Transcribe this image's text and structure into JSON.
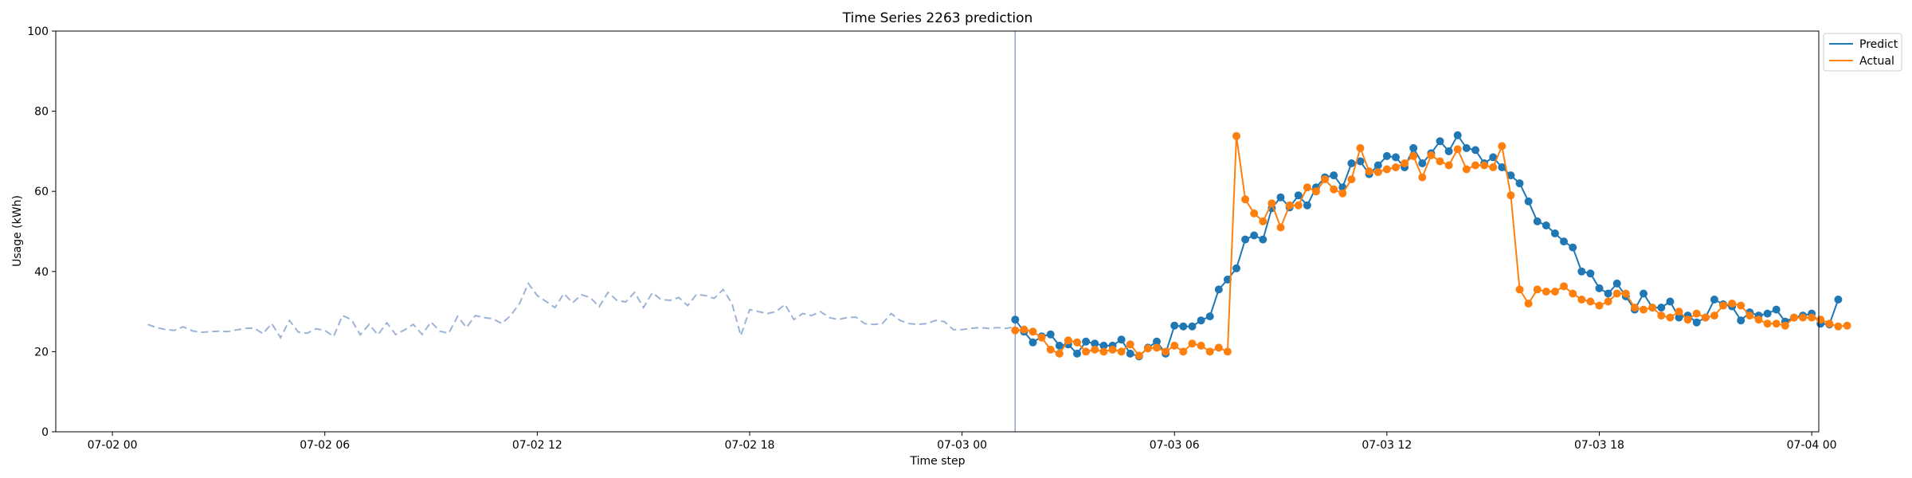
{
  "chart_data": {
    "type": "line",
    "title": "Time Series 2263 prediction",
    "xlabel": "Time step",
    "ylabel": "Usage (kWh)",
    "ylim": [
      0,
      100
    ],
    "xlim_hours": [
      -1.6,
      48.2
    ],
    "yticks": [
      0,
      20,
      40,
      60,
      80,
      100
    ],
    "xticks": [
      {
        "h": 0,
        "label": "07-02 00"
      },
      {
        "h": 6,
        "label": "07-02 06"
      },
      {
        "h": 12,
        "label": "07-02 12"
      },
      {
        "h": 18,
        "label": "07-02 18"
      },
      {
        "h": 24,
        "label": "07-03 00"
      },
      {
        "h": 30,
        "label": "07-03 06"
      },
      {
        "h": 36,
        "label": "07-03 12"
      },
      {
        "h": 42,
        "label": "07-03 18"
      },
      {
        "h": 48,
        "label": "07-04 00"
      }
    ],
    "legend": {
      "position": "top-right outside",
      "entries": [
        "Predict",
        "Actual"
      ]
    },
    "colors": {
      "predict": "#1f77b4",
      "actual": "#ff7f0e",
      "history": "#9db3d6",
      "divider": "#8fa8cf"
    },
    "divider_h": 25.5,
    "history": {
      "start_h": 1.0,
      "step_h": 0.25,
      "values": [
        26.8,
        26.0,
        25.5,
        25.3,
        26.2,
        25.2,
        24.8,
        25.0,
        25.1,
        25.0,
        25.4,
        25.8,
        25.9,
        24.5,
        27.0,
        23.5,
        27.8,
        24.9,
        24.6,
        25.7,
        25.3,
        23.8,
        29.0,
        28.0,
        24.2,
        26.8,
        24.2,
        27.2,
        24.3,
        25.4,
        26.8,
        24.3,
        27.4,
        25.1,
        24.6,
        28.8,
        26.0,
        29.0,
        28.5,
        28.2,
        27.0,
        29.0,
        32.0,
        37.0,
        34.0,
        32.5,
        31.0,
        34.5,
        32.2,
        34.2,
        33.5,
        31.2,
        34.8,
        32.8,
        32.4,
        34.8,
        31.0,
        34.7,
        33.0,
        32.8,
        33.5,
        31.5,
        34.3,
        34.0,
        33.3,
        35.5,
        32.0,
        24.0,
        30.5,
        30.0,
        29.5,
        30.0,
        31.8,
        28.0,
        29.5,
        29.0,
        30.0,
        28.5,
        28.0,
        28.5,
        28.6,
        27.0,
        26.8,
        27.0,
        29.5,
        27.8,
        27.0,
        26.8,
        27.0,
        27.8,
        27.5,
        25.5,
        25.5,
        25.8,
        26.0,
        25.8,
        26.0,
        25.8,
        26.2
      ]
    },
    "series": [
      {
        "name": "Predict",
        "start_h": 25.5,
        "step_h": 0.25,
        "values": [
          28.0,
          25.0,
          22.3,
          23.8,
          24.3,
          21.5,
          21.8,
          19.5,
          22.5,
          22.0,
          21.5,
          21.5,
          23.0,
          19.5,
          18.8,
          21.0,
          22.5,
          19.5,
          26.5,
          26.3,
          26.3,
          27.8,
          28.8,
          35.5,
          38.0,
          40.8,
          48.0,
          49.0,
          48.0,
          55.8,
          58.5,
          56.0,
          59.0,
          56.5,
          61.0,
          63.5,
          64.0,
          61.0,
          67.0,
          67.5,
          64.3,
          66.5,
          68.8,
          68.5,
          66.0,
          70.8,
          67.0,
          69.5,
          72.5,
          70.0,
          74.0,
          70.8,
          70.3,
          67.0,
          68.5,
          66.0,
          64.0,
          62.0,
          57.5,
          52.5,
          51.5,
          49.5,
          47.5,
          46.0,
          40.0,
          39.5,
          35.8,
          34.5,
          37.0,
          33.8,
          30.5,
          34.5,
          31.0,
          31.0,
          32.5,
          28.5,
          29.0,
          27.3,
          28.5,
          33.0,
          31.8,
          31.3,
          27.8,
          29.8,
          29.0,
          29.5,
          30.5,
          27.5,
          28.5,
          29.0,
          29.5,
          27.0,
          26.8,
          33.0
        ]
      },
      {
        "name": "Actual",
        "start_h": 25.5,
        "step_h": 0.25,
        "values": [
          25.3,
          25.5,
          25.0,
          23.5,
          20.5,
          19.5,
          22.8,
          22.3,
          20.0,
          20.5,
          20.0,
          20.5,
          20.0,
          21.8,
          19.0,
          20.8,
          21.0,
          20.0,
          21.5,
          20.0,
          22.0,
          21.5,
          20.0,
          21.0,
          20.0,
          73.8,
          58.0,
          54.5,
          52.5,
          57.0,
          51.0,
          56.5,
          56.5,
          61.0,
          60.0,
          63.0,
          60.5,
          59.5,
          63.0,
          70.8,
          65.0,
          64.8,
          65.5,
          66.0,
          67.0,
          68.8,
          63.5,
          69.0,
          67.5,
          66.5,
          70.5,
          65.5,
          66.5,
          66.5,
          66.0,
          71.3,
          59.0,
          35.5,
          32.0,
          35.5,
          35.0,
          35.0,
          36.3,
          34.5,
          33.0,
          32.5,
          31.5,
          32.5,
          34.5,
          34.5,
          31.0,
          30.5,
          31.0,
          29.0,
          28.5,
          30.0,
          28.0,
          29.5,
          28.5,
          29.0,
          31.5,
          32.0,
          31.5,
          29.0,
          28.0,
          27.0,
          27.0,
          26.5,
          28.5,
          28.5,
          28.5,
          28.0,
          27.0,
          26.3,
          26.5
        ]
      }
    ]
  }
}
